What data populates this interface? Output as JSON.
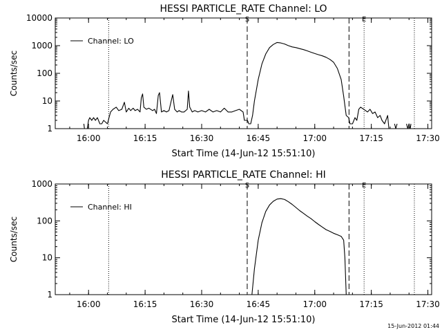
{
  "footer": {
    "timestamp": "15-Jun-2012 01:44"
  },
  "chart_data": [
    {
      "type": "line",
      "title": "HESSI PARTICLE_RATE Channel: LO",
      "xlabel": "Start Time (14-Jun-12 15:51:10)",
      "ylabel": "Counts/sec",
      "y_scale": "log",
      "ylim": [
        1,
        10000
      ],
      "xlim": [
        "15:51:10",
        "17:31:00"
      ],
      "x_ticks": [
        "16:00",
        "16:15",
        "16:30",
        "16:45",
        "17:00",
        "17:15",
        "17:30"
      ],
      "y_ticks": [
        "1",
        "10",
        "100",
        "1000",
        "10000"
      ],
      "legend": {
        "position": "top-left",
        "entries": [
          "Channel: LO"
        ]
      },
      "markers": [
        {
          "label": "S",
          "time": "16:42:05",
          "style": "dashed"
        },
        {
          "label": "E",
          "time": "17:13:05",
          "style": "dotted"
        }
      ],
      "extra_lines": [
        {
          "time": "16:05:20",
          "style": "dotted"
        },
        {
          "time": "17:09:05",
          "style": "dashed"
        },
        {
          "time": "17:26:25",
          "style": "dotted"
        }
      ],
      "series": [
        {
          "name": "Channel: LO",
          "points": [
            [
              "15:55:40",
              null
            ],
            [
              "15:56:10",
              1.5
            ],
            [
              "15:56:30",
              null
            ],
            [
              "15:58:30",
              null
            ],
            [
              "15:58:45",
              1.5
            ],
            [
              "15:58:55",
              1
            ],
            [
              "15:59:40",
              1
            ],
            [
              "16:00:00",
              2
            ],
            [
              "16:00:20",
              2.5
            ],
            [
              "16:00:50",
              2
            ],
            [
              "16:01:20",
              2.5
            ],
            [
              "16:01:50",
              2
            ],
            [
              "16:02:20",
              2.5
            ],
            [
              "16:03:00",
              1.5
            ],
            [
              "16:03:30",
              1.5
            ],
            [
              "16:04:00",
              2
            ],
            [
              "16:05:00",
              1.5
            ],
            [
              "16:05:50",
              4
            ],
            [
              "16:06:30",
              5
            ],
            [
              "16:07:20",
              6
            ],
            [
              "16:08:00",
              4.5
            ],
            [
              "16:08:50",
              5
            ],
            [
              "16:09:30",
              9
            ],
            [
              "16:10:00",
              4
            ],
            [
              "16:10:40",
              5.5
            ],
            [
              "16:11:10",
              4.5
            ],
            [
              "16:11:50",
              5.5
            ],
            [
              "16:12:20",
              4.5
            ],
            [
              "16:13:00",
              5
            ],
            [
              "16:13:40",
              4
            ],
            [
              "16:14:00",
              13
            ],
            [
              "16:14:20",
              18
            ],
            [
              "16:14:40",
              6
            ],
            [
              "16:15:20",
              5
            ],
            [
              "16:16:00",
              5.5
            ],
            [
              "16:17:00",
              4.5
            ],
            [
              "16:17:30",
              5
            ],
            [
              "16:18:00",
              3.5
            ],
            [
              "16:18:30",
              16
            ],
            [
              "16:18:50",
              20
            ],
            [
              "16:19:20",
              4
            ],
            [
              "16:20:00",
              4.5
            ],
            [
              "16:20:40",
              4
            ],
            [
              "16:21:20",
              4.5
            ],
            [
              "16:22:00",
              11
            ],
            [
              "16:22:20",
              17
            ],
            [
              "16:22:50",
              5
            ],
            [
              "16:23:30",
              4
            ],
            [
              "16:24:00",
              4.5
            ],
            [
              "16:24:40",
              4
            ],
            [
              "16:25:20",
              4
            ],
            [
              "16:26:10",
              5
            ],
            [
              "16:26:30",
              23
            ],
            [
              "16:26:50",
              6
            ],
            [
              "16:27:30",
              4
            ],
            [
              "16:28:10",
              4.5
            ],
            [
              "16:29:00",
              4
            ],
            [
              "16:30:00",
              4.5
            ],
            [
              "16:31:00",
              4
            ],
            [
              "16:32:00",
              5
            ],
            [
              "16:33:00",
              4
            ],
            [
              "16:34:00",
              4.5
            ],
            [
              "16:35:00",
              4
            ],
            [
              "16:36:00",
              5.5
            ],
            [
              "16:37:00",
              4
            ],
            [
              "16:38:00",
              4
            ],
            [
              "16:39:00",
              4.5
            ],
            [
              "16:40:00",
              5
            ],
            [
              "16:41:00",
              4
            ],
            [
              "16:41:20",
              2
            ],
            [
              "16:42:10",
              2
            ],
            [
              "16:42:30",
              1.5
            ],
            [
              "16:43:00",
              1.5
            ],
            [
              "16:43:30",
              3
            ],
            [
              "16:44:00",
              10
            ],
            [
              "16:45:00",
              60
            ],
            [
              "16:46:00",
              220
            ],
            [
              "16:47:00",
              500
            ],
            [
              "16:48:00",
              850
            ],
            [
              "16:49:00",
              1100
            ],
            [
              "16:50:00",
              1300
            ],
            [
              "16:51:00",
              1250
            ],
            [
              "16:52:00",
              1150
            ],
            [
              "16:53:00",
              1000
            ],
            [
              "16:54:00",
              900
            ],
            [
              "16:55:00",
              850
            ],
            [
              "16:56:00",
              780
            ],
            [
              "16:57:00",
              720
            ],
            [
              "16:58:00",
              650
            ],
            [
              "16:59:00",
              580
            ],
            [
              "17:00:00",
              520
            ],
            [
              "17:01:00",
              470
            ],
            [
              "17:02:00",
              430
            ],
            [
              "17:03:00",
              380
            ],
            [
              "17:04:00",
              320
            ],
            [
              "17:05:00",
              250
            ],
            [
              "17:06:00",
              150
            ],
            [
              "17:07:00",
              60
            ],
            [
              "17:07:40",
              15
            ],
            [
              "17:08:20",
              3
            ],
            [
              "17:09:00",
              2.5
            ],
            [
              "17:09:20",
              1.5
            ],
            [
              "17:10:00",
              1.5
            ],
            [
              "17:10:40",
              2.5
            ],
            [
              "17:11:10",
              2
            ],
            [
              "17:11:40",
              5
            ],
            [
              "17:12:10",
              6
            ],
            [
              "17:13:00",
              5
            ],
            [
              "17:14:00",
              4
            ],
            [
              "17:14:40",
              5
            ],
            [
              "17:15:20",
              3.5
            ],
            [
              "17:16:00",
              4
            ],
            [
              "17:16:40",
              2.5
            ],
            [
              "17:17:20",
              3
            ],
            [
              "17:17:50",
              2
            ],
            [
              "17:18:30",
              1.5
            ],
            [
              "17:19:20",
              3
            ],
            [
              "17:19:40",
              1
            ],
            [
              "17:20:00",
              null
            ],
            [
              "17:21:00",
              null
            ],
            [
              "17:21:10",
              1.5
            ],
            [
              "17:21:30",
              1
            ],
            [
              "17:21:50",
              1.5
            ],
            [
              "17:22:05",
              null
            ],
            [
              "17:24:10",
              null
            ],
            [
              "17:24:20",
              1.5
            ],
            [
              "17:24:40",
              1
            ],
            [
              "17:25:00",
              1.5
            ],
            [
              "17:25:20",
              1
            ],
            [
              "17:25:30",
              1.5
            ],
            [
              "17:25:40",
              null
            ]
          ]
        }
      ]
    },
    {
      "type": "line",
      "title": "HESSI PARTICLE_RATE Channel: HI",
      "xlabel": "Start Time (14-Jun-12 15:51:10)",
      "ylabel": "Counts/sec",
      "y_scale": "log",
      "ylim": [
        1,
        1000
      ],
      "xlim": [
        "15:51:10",
        "17:31:00"
      ],
      "x_ticks": [
        "16:00",
        "16:15",
        "16:30",
        "16:45",
        "17:00",
        "17:15",
        "17:30"
      ],
      "y_ticks": [
        "1",
        "10",
        "100",
        "1000"
      ],
      "legend": {
        "position": "top-left",
        "entries": [
          "Channel: HI"
        ]
      },
      "markers": [
        {
          "label": "S",
          "time": "16:42:05",
          "style": "dashed"
        },
        {
          "label": "E",
          "time": "17:13:05",
          "style": "dotted"
        }
      ],
      "extra_lines": [
        {
          "time": "16:05:20",
          "style": "dotted"
        },
        {
          "time": "17:09:05",
          "style": "dashed"
        },
        {
          "time": "17:26:25",
          "style": "dotted"
        }
      ],
      "series": [
        {
          "name": "Channel: HI",
          "points": [
            [
              "16:43:20",
              1
            ],
            [
              "16:44:00",
              5
            ],
            [
              "16:45:00",
              30
            ],
            [
              "16:46:00",
              90
            ],
            [
              "16:47:00",
              180
            ],
            [
              "16:48:00",
              270
            ],
            [
              "16:49:00",
              340
            ],
            [
              "16:50:00",
              390
            ],
            [
              "16:51:00",
              400
            ],
            [
              "16:52:00",
              380
            ],
            [
              "16:53:00",
              330
            ],
            [
              "16:54:00",
              280
            ],
            [
              "16:55:00",
              230
            ],
            [
              "16:56:00",
              190
            ],
            [
              "16:57:00",
              160
            ],
            [
              "16:58:00",
              135
            ],
            [
              "16:59:00",
              115
            ],
            [
              "17:00:00",
              95
            ],
            [
              "17:01:00",
              80
            ],
            [
              "17:02:00",
              68
            ],
            [
              "17:03:00",
              58
            ],
            [
              "17:04:00",
              52
            ],
            [
              "17:05:00",
              46
            ],
            [
              "17:06:00",
              42
            ],
            [
              "17:07:00",
              38
            ],
            [
              "17:07:40",
              30
            ],
            [
              "17:08:00",
              10
            ],
            [
              "17:08:20",
              1
            ]
          ]
        }
      ]
    }
  ]
}
